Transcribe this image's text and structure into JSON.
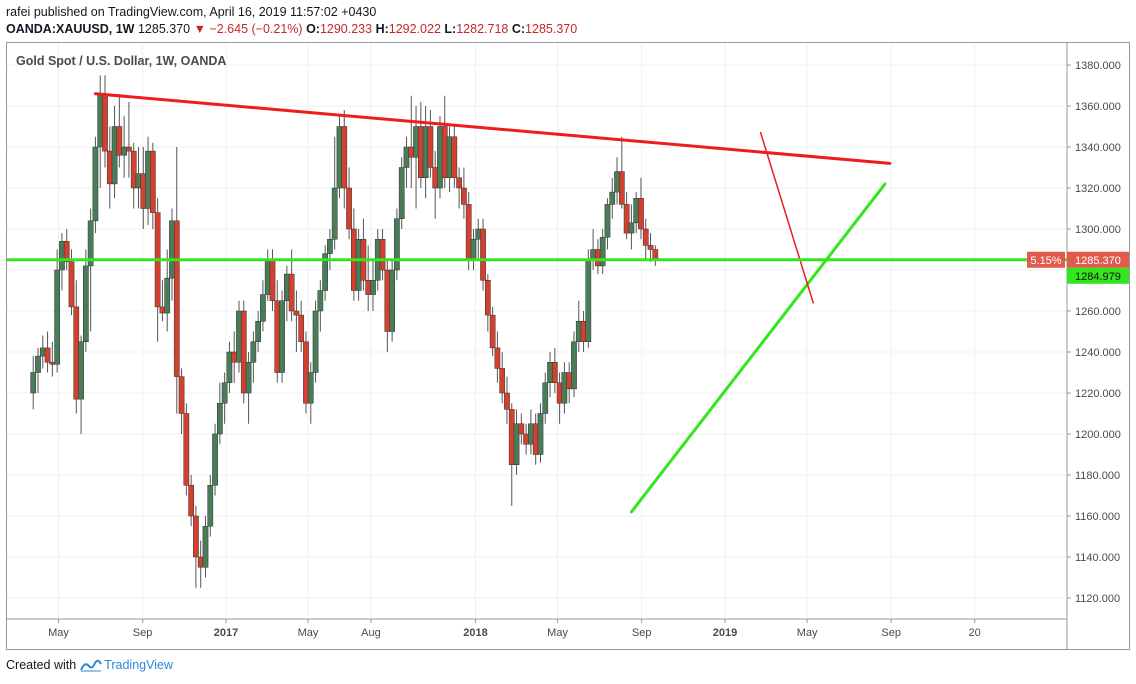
{
  "header": {
    "author": "rafei",
    "published_text": "published on TradingView.com, April 16, 2019 11:57:02 +0430",
    "symbol": "OANDA:XAUUSD, 1W",
    "last": "1285.370",
    "change": "−2.645 (−0.21%)",
    "o_label": "O:",
    "o_value": "1290.233",
    "h_label": "H:",
    "h_value": "1292.022",
    "l_label": "L:",
    "l_value": "1282.718",
    "c_label": "C:",
    "c_value": "1285.370"
  },
  "footer": {
    "created_with": "Created with",
    "brand": "TradingView"
  },
  "colors": {
    "up": "#4a7c59",
    "down": "#d3402f",
    "resistance": "#ee1c1c",
    "support": "#33e61d",
    "price_tag": "#e05a4e",
    "axis_text": "#4a4a4a"
  },
  "chart_data": {
    "type": "candlestick",
    "title": "Gold Spot / U.S. Dollar, 1W, OANDA",
    "ylim": [
      1110,
      1390
    ],
    "y_ticks": [
      "1120.000",
      "1140.000",
      "1160.000",
      "1180.000",
      "1200.000",
      "1220.000",
      "1240.000",
      "1260.000",
      "1280.000",
      "1300.000",
      "1320.000",
      "1340.000",
      "1360.000",
      "1380.000"
    ],
    "x_ticks": [
      "May",
      "Sep",
      "2017",
      "May",
      "Aug",
      "2018",
      "May",
      "Sep",
      "2019",
      "May",
      "Sep",
      "20"
    ],
    "x_ticks_bold": [
      "2017",
      "2018",
      "2019"
    ],
    "last_price_label": "1285.370",
    "last_price_pct": "5.15%",
    "horizontal_line_label": "1284.979",
    "horizontal_line_value": 1284.979,
    "candles": [
      [
        1220,
        1238,
        1212,
        1230
      ],
      [
        1230,
        1242,
        1220,
        1238
      ],
      [
        1238,
        1248,
        1232,
        1242
      ],
      [
        1242,
        1250,
        1230,
        1235
      ],
      [
        1235,
        1245,
        1228,
        1234
      ],
      [
        1234,
        1290,
        1230,
        1280
      ],
      [
        1280,
        1298,
        1270,
        1294
      ],
      [
        1294,
        1300,
        1280,
        1284
      ],
      [
        1284,
        1290,
        1258,
        1262
      ],
      [
        1262,
        1275,
        1210,
        1217
      ],
      [
        1217,
        1248,
        1200,
        1245
      ],
      [
        1245,
        1290,
        1240,
        1282
      ],
      [
        1282,
        1310,
        1250,
        1304
      ],
      [
        1304,
        1345,
        1298,
        1340
      ],
      [
        1340,
        1375,
        1320,
        1366
      ],
      [
        1366,
        1375,
        1330,
        1338
      ],
      [
        1338,
        1350,
        1310,
        1322
      ],
      [
        1322,
        1360,
        1315,
        1350
      ],
      [
        1350,
        1365,
        1330,
        1336
      ],
      [
        1336,
        1355,
        1325,
        1340
      ],
      [
        1340,
        1362,
        1325,
        1338
      ],
      [
        1338,
        1342,
        1310,
        1320
      ],
      [
        1320,
        1340,
        1310,
        1327
      ],
      [
        1327,
        1340,
        1300,
        1310
      ],
      [
        1310,
        1345,
        1302,
        1338
      ],
      [
        1338,
        1342,
        1300,
        1308
      ],
      [
        1308,
        1315,
        1245,
        1262
      ],
      [
        1262,
        1275,
        1255,
        1259
      ],
      [
        1259,
        1290,
        1250,
        1276
      ],
      [
        1276,
        1310,
        1265,
        1304
      ],
      [
        1304,
        1340,
        1210,
        1228
      ],
      [
        1228,
        1232,
        1200,
        1210
      ],
      [
        1210,
        1215,
        1170,
        1175
      ],
      [
        1175,
        1180,
        1155,
        1160
      ],
      [
        1160,
        1165,
        1125,
        1140
      ],
      [
        1140,
        1148,
        1125,
        1135
      ],
      [
        1135,
        1160,
        1130,
        1155
      ],
      [
        1155,
        1180,
        1150,
        1175
      ],
      [
        1175,
        1205,
        1170,
        1200
      ],
      [
        1200,
        1225,
        1195,
        1215
      ],
      [
        1215,
        1230,
        1205,
        1225
      ],
      [
        1225,
        1245,
        1220,
        1240
      ],
      [
        1240,
        1250,
        1225,
        1235
      ],
      [
        1235,
        1265,
        1230,
        1260
      ],
      [
        1260,
        1265,
        1215,
        1220
      ],
      [
        1220,
        1240,
        1205,
        1235
      ],
      [
        1235,
        1250,
        1225,
        1245
      ],
      [
        1245,
        1260,
        1240,
        1255
      ],
      [
        1255,
        1275,
        1250,
        1268
      ],
      [
        1268,
        1290,
        1265,
        1285
      ],
      [
        1285,
        1290,
        1260,
        1265
      ],
      [
        1265,
        1275,
        1225,
        1230
      ],
      [
        1230,
        1270,
        1225,
        1265
      ],
      [
        1265,
        1282,
        1255,
        1278
      ],
      [
        1278,
        1290,
        1255,
        1260
      ],
      [
        1260,
        1270,
        1240,
        1258
      ],
      [
        1258,
        1265,
        1240,
        1245
      ],
      [
        1245,
        1250,
        1210,
        1215
      ],
      [
        1215,
        1235,
        1205,
        1230
      ],
      [
        1230,
        1265,
        1225,
        1260
      ],
      [
        1260,
        1275,
        1250,
        1270
      ],
      [
        1270,
        1292,
        1265,
        1288
      ],
      [
        1288,
        1300,
        1280,
        1295
      ],
      [
        1295,
        1345,
        1290,
        1320
      ],
      [
        1320,
        1355,
        1315,
        1350
      ],
      [
        1350,
        1358,
        1310,
        1320
      ],
      [
        1320,
        1330,
        1295,
        1300
      ],
      [
        1300,
        1310,
        1265,
        1270
      ],
      [
        1270,
        1300,
        1265,
        1295
      ],
      [
        1295,
        1305,
        1270,
        1275
      ],
      [
        1275,
        1292,
        1260,
        1268
      ],
      [
        1268,
        1285,
        1260,
        1275
      ],
      [
        1275,
        1300,
        1270,
        1295
      ],
      [
        1295,
        1300,
        1275,
        1280
      ],
      [
        1280,
        1285,
        1240,
        1250
      ],
      [
        1250,
        1285,
        1245,
        1280
      ],
      [
        1280,
        1310,
        1275,
        1305
      ],
      [
        1305,
        1335,
        1300,
        1330
      ],
      [
        1330,
        1345,
        1320,
        1340
      ],
      [
        1340,
        1365,
        1320,
        1335
      ],
      [
        1335,
        1360,
        1310,
        1350
      ],
      [
        1350,
        1362,
        1320,
        1325
      ],
      [
        1325,
        1360,
        1315,
        1350
      ],
      [
        1350,
        1358,
        1325,
        1330
      ],
      [
        1330,
        1338,
        1305,
        1320
      ],
      [
        1320,
        1355,
        1315,
        1350
      ],
      [
        1350,
        1365,
        1320,
        1325
      ],
      [
        1325,
        1350,
        1318,
        1345
      ],
      [
        1345,
        1350,
        1320,
        1325
      ],
      [
        1325,
        1330,
        1310,
        1320
      ],
      [
        1320,
        1330,
        1305,
        1312
      ],
      [
        1312,
        1318,
        1280,
        1285
      ],
      [
        1285,
        1300,
        1280,
        1295
      ],
      [
        1295,
        1305,
        1285,
        1300
      ],
      [
        1300,
        1305,
        1270,
        1275
      ],
      [
        1275,
        1278,
        1250,
        1258
      ],
      [
        1258,
        1262,
        1238,
        1242
      ],
      [
        1242,
        1250,
        1225,
        1232
      ],
      [
        1232,
        1240,
        1215,
        1220
      ],
      [
        1220,
        1228,
        1205,
        1212
      ],
      [
        1212,
        1215,
        1165,
        1185
      ],
      [
        1185,
        1212,
        1180,
        1205
      ],
      [
        1205,
        1210,
        1195,
        1200
      ],
      [
        1200,
        1205,
        1190,
        1195
      ],
      [
        1195,
        1212,
        1190,
        1205
      ],
      [
        1205,
        1210,
        1185,
        1190
      ],
      [
        1190,
        1215,
        1186,
        1210
      ],
      [
        1210,
        1230,
        1205,
        1225
      ],
      [
        1225,
        1240,
        1218,
        1235
      ],
      [
        1235,
        1242,
        1220,
        1225
      ],
      [
        1225,
        1230,
        1205,
        1215
      ],
      [
        1215,
        1235,
        1210,
        1230
      ],
      [
        1230,
        1235,
        1215,
        1222
      ],
      [
        1222,
        1250,
        1218,
        1245
      ],
      [
        1245,
        1265,
        1240,
        1255
      ],
      [
        1255,
        1260,
        1240,
        1245
      ],
      [
        1245,
        1290,
        1242,
        1285
      ],
      [
        1285,
        1300,
        1280,
        1290
      ],
      [
        1290,
        1295,
        1278,
        1282
      ],
      [
        1282,
        1300,
        1278,
        1296
      ],
      [
        1296,
        1315,
        1290,
        1312
      ],
      [
        1312,
        1325,
        1305,
        1318
      ],
      [
        1318,
        1335,
        1312,
        1328
      ],
      [
        1328,
        1345,
        1310,
        1312
      ],
      [
        1312,
        1318,
        1295,
        1298
      ],
      [
        1298,
        1312,
        1290,
        1303
      ],
      [
        1303,
        1318,
        1298,
        1315
      ],
      [
        1315,
        1325,
        1295,
        1300
      ],
      [
        1300,
        1305,
        1285,
        1292
      ],
      [
        1292,
        1298,
        1284,
        1290
      ],
      [
        1290,
        1292,
        1282,
        1285
      ]
    ],
    "resistance_line": [
      [
        "2016-06-24",
        1366
      ],
      [
        "2019-08-30",
        1332
      ]
    ],
    "support_line": [
      [
        "2018-08-17",
        1162
      ],
      [
        "2019-08-23",
        1322
      ]
    ],
    "short_downtrend_line": [
      [
        "2019-02-22",
        1347
      ],
      [
        "2019-05-10",
        1264
      ]
    ]
  }
}
